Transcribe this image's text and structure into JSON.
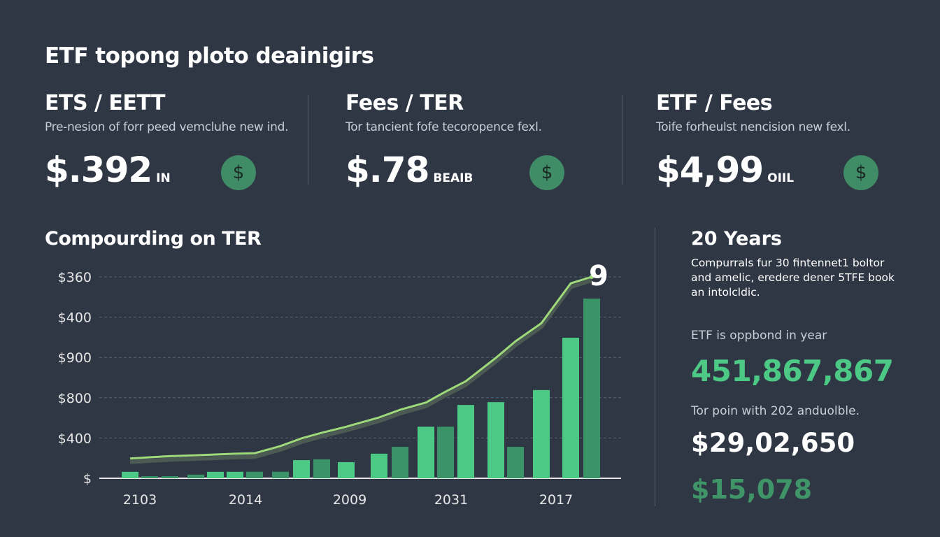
{
  "header": {
    "title": "ETF topong ploto deainigirs"
  },
  "cards": [
    {
      "heading": "ETS / EETT",
      "description": "Pre-nesion of forr peed vemcluhe new ind.",
      "value": "$.392",
      "unit": "IN",
      "icon": "dollar-coin-icon"
    },
    {
      "heading": "Fees / TER",
      "description": "Tor tancient fofe tecoropence fexl.",
      "value": "$.78",
      "unit": "BEAIB",
      "icon": "dollar-coin-icon"
    },
    {
      "heading": "ETF / Fees",
      "description": "Toife forheulst nencision new fexl.",
      "value": "$4,99",
      "unit": "OIIL",
      "icon": "dollar-coin-icon"
    }
  ],
  "colors": {
    "background": "#2f3745",
    "bar_light": "#4cc985",
    "bar_dark": "#3a9468",
    "line": "#9ed97a",
    "accent_green": "#4cc985"
  },
  "chart_data": {
    "type": "bar",
    "title": "Compourding on TER",
    "y_tick_labels": [
      "$",
      "$400",
      "$800",
      "$900",
      "$400",
      "$360"
    ],
    "x_tick_labels": [
      "2103",
      "2014",
      "2009",
      "2031",
      "2017"
    ],
    "grid": true,
    "end_annotation": "9",
    "value_unit": "gridline steps above baseline",
    "ylim": [
      0,
      5
    ],
    "bars": {
      "values": [
        0.16,
        0.05,
        0.05,
        0.09,
        0.16,
        0.16,
        0.16,
        0.16,
        0.45,
        0.47,
        0.4,
        0.61,
        0.78,
        1.28,
        1.28,
        1.82,
        1.89,
        0.78,
        2.19,
        3.49,
        4.46
      ],
      "shades": [
        "light",
        "dark",
        "dark",
        "dark",
        "light",
        "light",
        "dark",
        "dark",
        "light",
        "dark",
        "light",
        "light",
        "dark",
        "light",
        "dark",
        "light",
        "light",
        "dark",
        "light",
        "light",
        "dark"
      ]
    },
    "line": {
      "values": [
        0.49,
        0.52,
        0.55,
        0.57,
        0.59,
        0.61,
        0.62,
        0.8,
        0.99,
        1.13,
        1.28,
        1.51,
        1.7,
        1.88,
        2.15,
        2.41,
        2.99,
        3.4,
        3.85,
        4.84,
        5.0
      ]
    }
  },
  "summary": {
    "title": "20 Years",
    "description": "Compurrals fur 30 fintennet1 boltor and amelic, eredere dener 5TFE book an intolcldic.",
    "label1": "ETF is oppbond in year",
    "big_value": "451,867,867",
    "label2": "Tor poin with 202 anduolble.",
    "value2": "$29,02,650",
    "value3": "$15,078"
  }
}
